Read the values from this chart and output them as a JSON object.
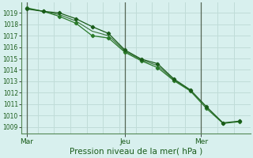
{
  "background_color": "#d8f0ee",
  "grid_color": "#c0dcd8",
  "line_color_dark": "#1a5c1a",
  "line_color_mid": "#2a7a2a",
  "ylabel_ticks": [
    1009,
    1010,
    1011,
    1012,
    1013,
    1014,
    1015,
    1016,
    1017,
    1018,
    1019
  ],
  "ylim": [
    1008.4,
    1019.9
  ],
  "xlabel": "Pression niveau de la mer( hPa )",
  "xtick_labels": [
    "Mar",
    "Jeu",
    "Mer"
  ],
  "xtick_positions": [
    0.5,
    9.5,
    16.5
  ],
  "vline_positions": [
    0.5,
    9.5,
    16.5
  ],
  "x_total_min": 0,
  "x_total_max": 21,
  "series1_x": [
    0.5,
    2.0,
    3.5,
    5.0,
    6.5,
    8.0,
    9.5,
    11.0,
    12.5,
    14.0,
    15.5,
    17.0,
    18.5,
    20.0
  ],
  "series1_y": [
    1019.35,
    1019.15,
    1019.0,
    1018.5,
    1017.8,
    1017.2,
    1015.75,
    1014.95,
    1014.55,
    1013.2,
    1012.25,
    1010.75,
    1009.35,
    1009.5
  ],
  "series2_x": [
    0.5,
    2.0,
    3.5,
    5.0,
    6.5,
    8.0,
    9.5,
    11.0,
    12.5,
    14.0,
    15.5,
    17.0,
    18.5,
    20.0
  ],
  "series2_y": [
    1019.45,
    1019.15,
    1018.7,
    1018.1,
    1017.0,
    1016.8,
    1015.55,
    1014.8,
    1014.2,
    1013.05,
    1012.15,
    1010.6,
    1009.3,
    1009.45
  ],
  "series3_x": [
    0.5,
    2.0,
    3.5,
    5.0,
    6.5,
    8.0,
    9.5,
    11.0,
    12.5,
    14.0,
    15.5
  ],
  "series3_y": [
    1019.4,
    1019.15,
    1018.85,
    1018.3,
    1017.4,
    1017.0,
    1015.65,
    1014.88,
    1014.38,
    1013.12,
    1012.2
  ]
}
